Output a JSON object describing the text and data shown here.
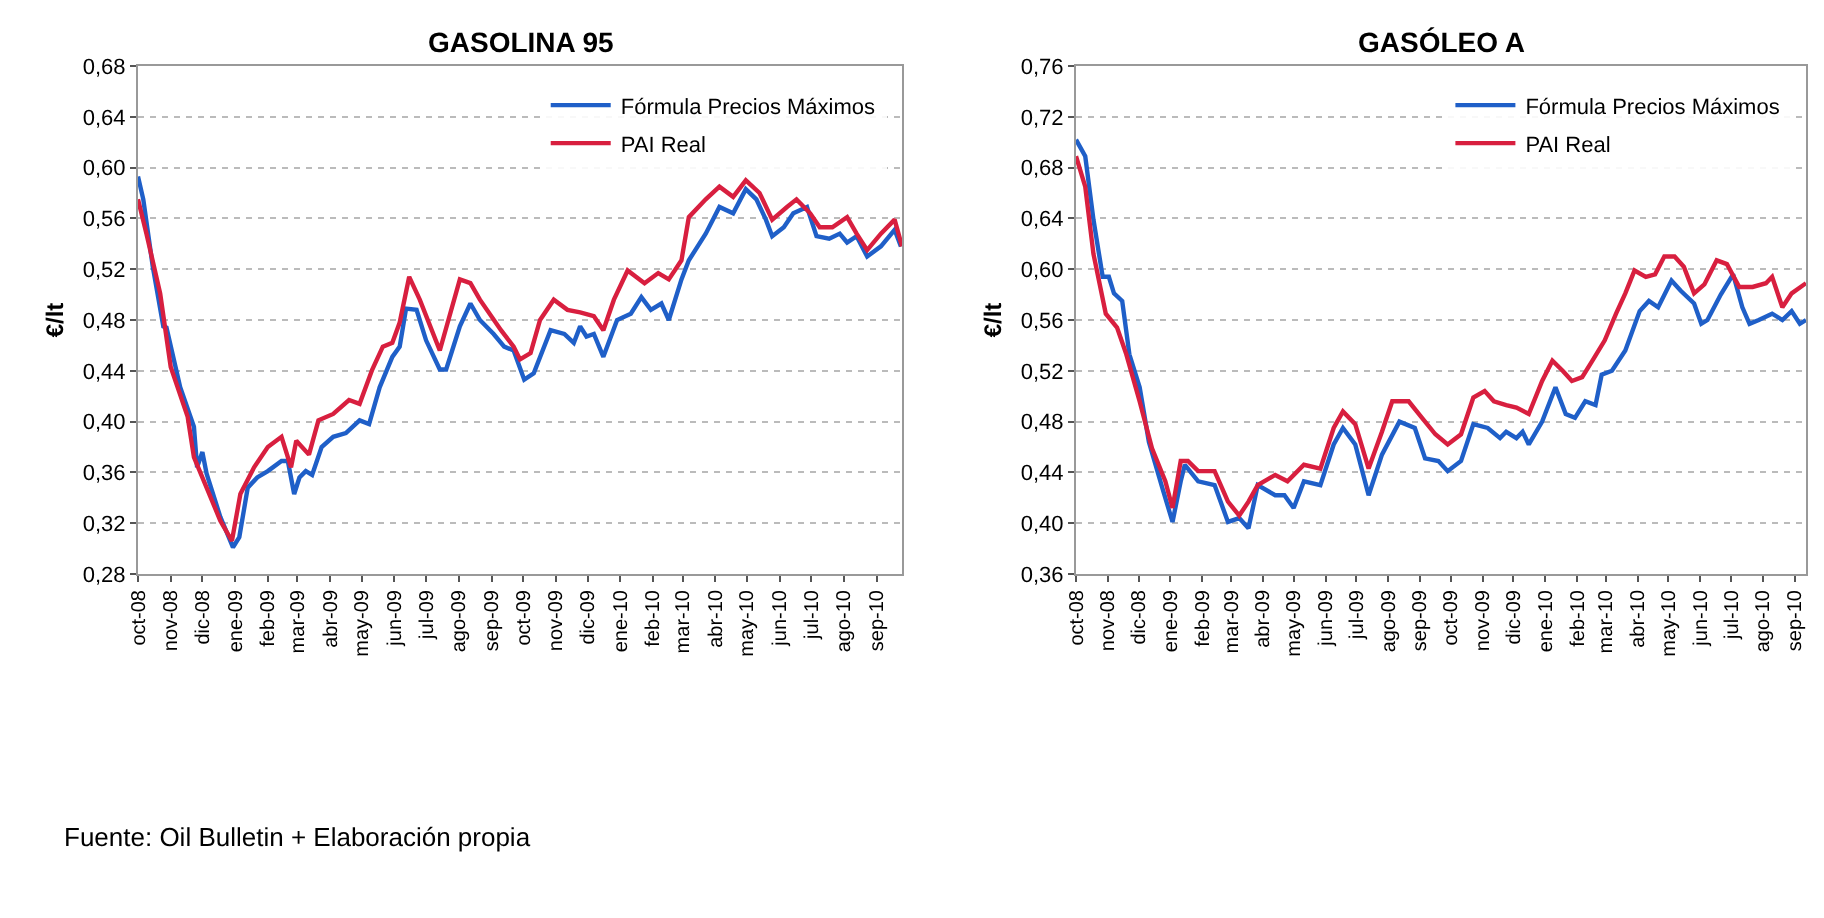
{
  "chart_data": [
    {
      "type": "line",
      "title": "GASOLINA 95",
      "ylabel": "€/lt",
      "grid": "y",
      "legend": "top right",
      "line_style": "solid",
      "marker": "none",
      "xlim": [
        "2008-10-01",
        "2010-09-25"
      ],
      "xticks": [
        {
          "value": "2008-10-01",
          "label": "oct-08"
        },
        {
          "value": "2008-11-01",
          "label": "nov-08"
        },
        {
          "value": "2008-12-01",
          "label": "dic-08"
        },
        {
          "value": "2009-01-01",
          "label": "ene-09"
        },
        {
          "value": "2009-02-01",
          "label": "feb-09"
        },
        {
          "value": "2009-03-01",
          "label": "mar-09"
        },
        {
          "value": "2009-04-01",
          "label": "abr-09"
        },
        {
          "value": "2009-05-01",
          "label": "may-09"
        },
        {
          "value": "2009-06-01",
          "label": "jun-09"
        },
        {
          "value": "2009-07-01",
          "label": "jul-09"
        },
        {
          "value": "2009-08-01",
          "label": "ago-09"
        },
        {
          "value": "2009-09-01",
          "label": "sep-09"
        },
        {
          "value": "2009-10-01",
          "label": "oct-09"
        },
        {
          "value": "2009-11-01",
          "label": "nov-09"
        },
        {
          "value": "2009-12-01",
          "label": "dic-09"
        },
        {
          "value": "2010-01-01",
          "label": "ene-10"
        },
        {
          "value": "2010-02-01",
          "label": "feb-10"
        },
        {
          "value": "2010-03-01",
          "label": "mar-10"
        },
        {
          "value": "2010-04-01",
          "label": "abr-10"
        },
        {
          "value": "2010-05-01",
          "label": "may-10"
        },
        {
          "value": "2010-06-01",
          "label": "jun-10"
        },
        {
          "value": "2010-07-01",
          "label": "jul-10"
        },
        {
          "value": "2010-08-01",
          "label": "ago-10"
        },
        {
          "value": "2010-09-01",
          "label": "sep-10"
        }
      ],
      "ylim": [
        0.28,
        0.68
      ],
      "yticks": [
        {
          "value": 0.28,
          "label": "0,28"
        },
        {
          "value": 0.32,
          "label": "0,32"
        },
        {
          "value": 0.36,
          "label": "0,36"
        },
        {
          "value": 0.4,
          "label": "0,40"
        },
        {
          "value": 0.44,
          "label": "0,44"
        },
        {
          "value": 0.48,
          "label": "0,48"
        },
        {
          "value": 0.52,
          "label": "0,52"
        },
        {
          "value": 0.56,
          "label": "0,56"
        },
        {
          "value": 0.6,
          "label": "0,60"
        },
        {
          "value": 0.64,
          "label": "0,64"
        },
        {
          "value": 0.68,
          "label": "0,68"
        }
      ],
      "annotations": [
        "Fuente: Oil Bulletin + Elaboración propia"
      ],
      "series": [
        {
          "name": "Fórmula Precios Máximos",
          "color": "#1f5fc8",
          "x": [
            "2008-10-01",
            "2008-10-06",
            "2008-10-15",
            "2008-10-25",
            "2008-10-28",
            "2008-11-10",
            "2008-11-23",
            "2008-11-26",
            "2008-12-01",
            "2008-12-05",
            "2008-12-18",
            "2008-12-30",
            "2009-01-05",
            "2009-01-13",
            "2009-01-22",
            "2009-02-01",
            "2009-02-14",
            "2009-02-20",
            "2009-02-26",
            "2009-03-03",
            "2009-03-09",
            "2009-03-15",
            "2009-03-24",
            "2009-04-04",
            "2009-04-16",
            "2009-04-29",
            "2009-05-08",
            "2009-05-18",
            "2009-05-30",
            "2009-06-06",
            "2009-06-12",
            "2009-06-22",
            "2009-07-01",
            "2009-07-14",
            "2009-07-20",
            "2009-08-02",
            "2009-08-12",
            "2009-08-21",
            "2009-09-03",
            "2009-09-13",
            "2009-09-22",
            "2009-10-02",
            "2009-10-11",
            "2009-10-27",
            "2009-11-09",
            "2009-11-18",
            "2009-11-24",
            "2009-11-30",
            "2009-12-07",
            "2009-12-16",
            "2009-12-29",
            "2010-01-11",
            "2010-01-21",
            "2010-01-30",
            "2010-02-09",
            "2010-02-16",
            "2010-02-28",
            "2010-03-07",
            "2010-03-23",
            "2010-04-05",
            "2010-04-18",
            "2010-04-30",
            "2010-05-10",
            "2010-05-19",
            "2010-05-25",
            "2010-06-05",
            "2010-06-14",
            "2010-06-27",
            "2010-07-06",
            "2010-07-18",
            "2010-07-28",
            "2010-08-04",
            "2010-08-13",
            "2010-08-23",
            "2010-09-05",
            "2010-09-18",
            "2010-09-24"
          ],
          "values": [
            0.593,
            0.575,
            0.522,
            0.475,
            0.474,
            0.427,
            0.396,
            0.364,
            0.376,
            0.359,
            0.325,
            0.301,
            0.309,
            0.348,
            0.356,
            0.361,
            0.369,
            0.369,
            0.343,
            0.356,
            0.361,
            0.358,
            0.38,
            0.388,
            0.391,
            0.401,
            0.398,
            0.427,
            0.451,
            0.459,
            0.489,
            0.488,
            0.464,
            0.441,
            0.441,
            0.475,
            0.493,
            0.48,
            0.469,
            0.459,
            0.456,
            0.433,
            0.438,
            0.472,
            0.469,
            0.462,
            0.475,
            0.467,
            0.469,
            0.451,
            0.48,
            0.485,
            0.498,
            0.488,
            0.493,
            0.48,
            0.512,
            0.527,
            0.548,
            0.569,
            0.564,
            0.583,
            0.575,
            0.559,
            0.546,
            0.553,
            0.564,
            0.569,
            0.546,
            0.544,
            0.548,
            0.541,
            0.546,
            0.53,
            0.538,
            0.551,
            0.538
          ]
        },
        {
          "name": "PAI Real",
          "color": "#d81f3f",
          "x": [
            "2008-10-01",
            "2008-10-09",
            "2008-10-22",
            "2008-11-01",
            "2008-11-17",
            "2008-11-23",
            "2008-12-05",
            "2008-12-18",
            "2008-12-29",
            "2009-01-06",
            "2009-01-19",
            "2009-02-01",
            "2009-02-14",
            "2009-02-23",
            "2009-02-28",
            "2009-03-12",
            "2009-03-21",
            "2009-04-04",
            "2009-04-19",
            "2009-04-29",
            "2009-05-11",
            "2009-05-21",
            "2009-05-30",
            "2009-06-06",
            "2009-06-15",
            "2009-06-25",
            "2009-07-14",
            "2009-08-02",
            "2009-08-12",
            "2009-08-21",
            "2009-09-10",
            "2009-09-22",
            "2009-09-28",
            "2009-10-08",
            "2009-10-17",
            "2009-10-30",
            "2009-11-12",
            "2009-11-24",
            "2009-12-07",
            "2009-12-16",
            "2009-12-26",
            "2010-01-08",
            "2010-01-24",
            "2010-02-06",
            "2010-02-16",
            "2010-02-28",
            "2010-03-07",
            "2010-03-23",
            "2010-04-05",
            "2010-04-18",
            "2010-04-30",
            "2010-05-13",
            "2010-05-25",
            "2010-06-08",
            "2010-06-17",
            "2010-06-30",
            "2010-07-09",
            "2010-07-21",
            "2010-08-04",
            "2010-08-13",
            "2010-08-23",
            "2010-09-05",
            "2010-09-18",
            "2010-09-25"
          ],
          "values": [
            0.575,
            0.548,
            0.501,
            0.443,
            0.404,
            0.372,
            0.348,
            0.322,
            0.306,
            0.343,
            0.364,
            0.38,
            0.388,
            0.364,
            0.385,
            0.374,
            0.401,
            0.406,
            0.417,
            0.414,
            0.441,
            0.459,
            0.462,
            0.478,
            0.514,
            0.496,
            0.456,
            0.512,
            0.509,
            0.496,
            0.472,
            0.459,
            0.449,
            0.454,
            0.48,
            0.496,
            0.488,
            0.486,
            0.483,
            0.472,
            0.496,
            0.519,
            0.509,
            0.517,
            0.512,
            0.527,
            0.561,
            0.575,
            0.585,
            0.577,
            0.59,
            0.58,
            0.559,
            0.569,
            0.575,
            0.564,
            0.553,
            0.553,
            0.561,
            0.548,
            0.535,
            0.548,
            0.559,
            0.538
          ]
        }
      ]
    },
    {
      "type": "line",
      "title": "GASÓLEO A",
      "ylabel": "€/lt",
      "grid": "y",
      "legend": "top right",
      "line_style": "solid",
      "marker": "none",
      "xlim": [
        "2008-10-01",
        "2010-09-12"
      ],
      "xticks": [
        {
          "value": "2008-10-01",
          "label": "oct-08"
        },
        {
          "value": "2008-11-01",
          "label": "nov-08"
        },
        {
          "value": "2008-12-01",
          "label": "dic-08"
        },
        {
          "value": "2009-01-01",
          "label": "ene-09"
        },
        {
          "value": "2009-02-01",
          "label": "feb-09"
        },
        {
          "value": "2009-03-01",
          "label": "mar-09"
        },
        {
          "value": "2009-04-01",
          "label": "abr-09"
        },
        {
          "value": "2009-05-01",
          "label": "may-09"
        },
        {
          "value": "2009-06-01",
          "label": "jun-09"
        },
        {
          "value": "2009-07-01",
          "label": "jul-09"
        },
        {
          "value": "2009-08-01",
          "label": "ago-09"
        },
        {
          "value": "2009-09-01",
          "label": "sep-09"
        },
        {
          "value": "2009-10-01",
          "label": "oct-09"
        },
        {
          "value": "2009-11-01",
          "label": "nov-09"
        },
        {
          "value": "2009-12-01",
          "label": "dic-09"
        },
        {
          "value": "2010-01-01",
          "label": "ene-10"
        },
        {
          "value": "2010-02-01",
          "label": "feb-10"
        },
        {
          "value": "2010-03-01",
          "label": "mar-10"
        },
        {
          "value": "2010-04-01",
          "label": "abr-10"
        },
        {
          "value": "2010-05-01",
          "label": "may-10"
        },
        {
          "value": "2010-06-01",
          "label": "jun-10"
        },
        {
          "value": "2010-07-01",
          "label": "jul-10"
        },
        {
          "value": "2010-08-01",
          "label": "ago-10"
        },
        {
          "value": "2010-09-01",
          "label": "sep-10"
        }
      ],
      "ylim": [
        0.36,
        0.76
      ],
      "yticks": [
        {
          "value": 0.36,
          "label": "0,36"
        },
        {
          "value": 0.4,
          "label": "0,40"
        },
        {
          "value": 0.44,
          "label": "0,44"
        },
        {
          "value": 0.48,
          "label": "0,48"
        },
        {
          "value": 0.52,
          "label": "0,52"
        },
        {
          "value": 0.56,
          "label": "0,56"
        },
        {
          "value": 0.6,
          "label": "0,60"
        },
        {
          "value": 0.64,
          "label": "0,64"
        },
        {
          "value": 0.68,
          "label": "0,68"
        },
        {
          "value": 0.72,
          "label": "0,72"
        },
        {
          "value": 0.76,
          "label": "0,76"
        }
      ],
      "series": [
        {
          "name": "Fórmula Precios Máximos",
          "color": "#1f5fc8",
          "x": [
            "2008-10-01",
            "2008-10-10",
            "2008-10-18",
            "2008-10-27",
            "2008-11-02",
            "2008-11-07",
            "2008-11-15",
            "2008-11-22",
            "2008-12-02",
            "2008-12-11",
            "2008-12-24",
            "2009-01-03",
            "2009-01-11",
            "2009-01-15",
            "2009-01-28",
            "2009-02-13",
            "2009-02-26",
            "2009-03-09",
            "2009-03-18",
            "2009-03-27",
            "2009-04-13",
            "2009-04-22",
            "2009-05-01",
            "2009-05-11",
            "2009-05-27",
            "2009-06-09",
            "2009-06-18",
            "2009-06-30",
            "2009-07-13",
            "2009-07-26",
            "2009-08-12",
            "2009-08-27",
            "2009-09-06",
            "2009-09-19",
            "2009-09-28",
            "2009-10-11",
            "2009-10-23",
            "2009-11-06",
            "2009-11-18",
            "2009-11-24",
            "2009-12-04",
            "2009-12-10",
            "2009-12-16",
            "2009-12-29",
            "2010-01-11",
            "2010-01-21",
            "2010-01-30",
            "2010-02-09",
            "2010-02-19",
            "2010-02-25",
            "2010-03-07",
            "2010-03-20",
            "2010-04-03",
            "2010-04-12",
            "2010-04-21",
            "2010-05-04",
            "2010-05-13",
            "2010-05-26",
            "2010-06-02",
            "2010-06-08",
            "2010-06-21",
            "2010-07-03",
            "2010-07-12",
            "2010-07-19",
            "2010-07-28",
            "2010-08-10",
            "2010-08-20",
            "2010-08-29",
            "2010-09-06",
            "2010-09-12"
          ],
          "values": [
            0.702,
            0.689,
            0.639,
            0.594,
            0.594,
            0.581,
            0.575,
            0.533,
            0.507,
            0.464,
            0.428,
            0.401,
            0.433,
            0.446,
            0.433,
            0.43,
            0.401,
            0.404,
            0.396,
            0.43,
            0.422,
            0.422,
            0.412,
            0.433,
            0.43,
            0.462,
            0.475,
            0.462,
            0.422,
            0.454,
            0.48,
            0.475,
            0.451,
            0.449,
            0.441,
            0.449,
            0.478,
            0.475,
            0.467,
            0.472,
            0.467,
            0.472,
            0.462,
            0.48,
            0.507,
            0.486,
            0.483,
            0.496,
            0.493,
            0.517,
            0.52,
            0.536,
            0.567,
            0.575,
            0.57,
            0.591,
            0.583,
            0.573,
            0.557,
            0.56,
            0.58,
            0.596,
            0.57,
            0.557,
            0.56,
            0.565,
            0.56,
            0.567,
            0.557,
            0.56
          ]
        },
        {
          "name": "PAI Real",
          "color": "#d81f3f",
          "x": [
            "2008-10-01",
            "2008-10-10",
            "2008-10-18",
            "2008-10-30",
            "2008-11-10",
            "2008-11-19",
            "2008-12-02",
            "2008-12-14",
            "2008-12-27",
            "2009-01-03",
            "2009-01-11",
            "2009-01-18",
            "2009-01-28",
            "2009-02-13",
            "2009-02-26",
            "2009-03-09",
            "2009-03-18",
            "2009-03-27",
            "2009-04-13",
            "2009-04-25",
            "2009-05-11",
            "2009-05-27",
            "2009-06-09",
            "2009-06-18",
            "2009-06-30",
            "2009-07-13",
            "2009-07-26",
            "2009-08-05",
            "2009-08-21",
            "2009-09-03",
            "2009-09-16",
            "2009-09-28",
            "2009-10-11",
            "2009-10-23",
            "2009-11-03",
            "2009-11-12",
            "2009-11-24",
            "2009-12-04",
            "2009-12-16",
            "2009-12-29",
            "2010-01-08",
            "2010-01-18",
            "2010-01-27",
            "2010-02-06",
            "2010-02-16",
            "2010-02-28",
            "2010-03-11",
            "2010-03-20",
            "2010-03-29",
            "2010-04-09",
            "2010-04-18",
            "2010-04-27",
            "2010-05-07",
            "2010-05-16",
            "2010-05-26",
            "2010-06-05",
            "2010-06-17",
            "2010-06-27",
            "2010-07-09",
            "2010-07-22",
            "2010-08-04",
            "2010-08-10",
            "2010-08-20",
            "2010-08-29",
            "2010-09-12"
          ],
          "values": [
            0.689,
            0.665,
            0.612,
            0.565,
            0.554,
            0.533,
            0.496,
            0.459,
            0.433,
            0.412,
            0.449,
            0.449,
            0.441,
            0.441,
            0.417,
            0.406,
            0.417,
            0.43,
            0.438,
            0.433,
            0.446,
            0.443,
            0.475,
            0.488,
            0.478,
            0.443,
            0.472,
            0.496,
            0.496,
            0.483,
            0.47,
            0.462,
            0.47,
            0.499,
            0.504,
            0.496,
            0.493,
            0.491,
            0.486,
            0.512,
            0.528,
            0.52,
            0.512,
            0.515,
            0.528,
            0.544,
            0.565,
            0.581,
            0.599,
            0.594,
            0.596,
            0.61,
            0.61,
            0.602,
            0.581,
            0.588,
            0.607,
            0.604,
            0.586,
            0.586,
            0.589,
            0.594,
            0.57,
            0.581,
            0.589
          ]
        }
      ]
    }
  ]
}
